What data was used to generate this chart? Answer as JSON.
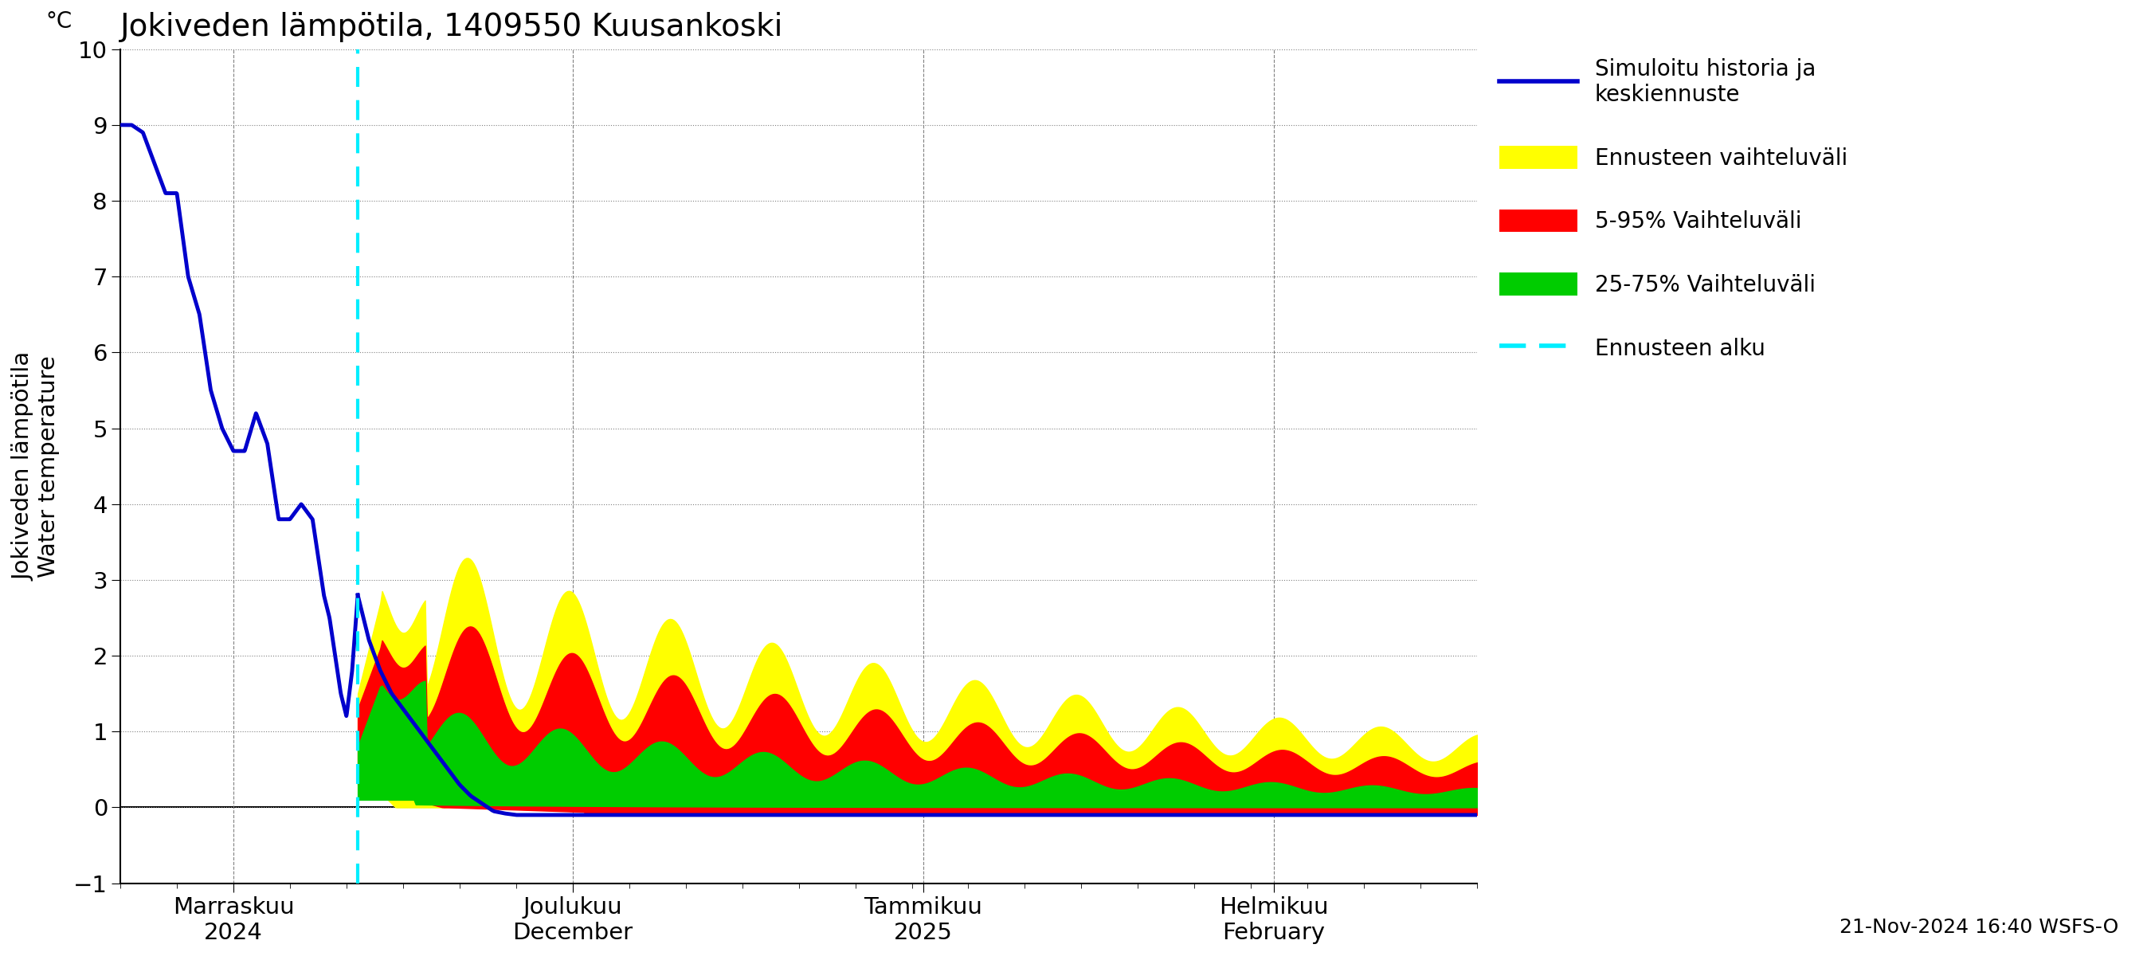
{
  "title": "Jokiveden lämpötila, 1409550 Kuusankoski",
  "ylabel_fi": "Jokiveden lämpötila",
  "ylabel_en": "Water temperature",
  "yunit": "°C",
  "ylim": [
    -1,
    10
  ],
  "yticks": [
    -1,
    0,
    1,
    2,
    3,
    4,
    5,
    6,
    7,
    8,
    9,
    10
  ],
  "footnote": "21-Nov-2024 16:40 WSFS-O",
  "colors": {
    "blue_line": "#0000cc",
    "cyan_dashed": "#00eeff",
    "yellow_band": "#ffff00",
    "red_band": "#ff0000",
    "green_band": "#00cc00"
  },
  "legend": {
    "simuloitu": "Simuloitu historia ja\nkeskiennuste",
    "ennuste_vaihteluvali": "Ennusteen vaihteluväli",
    "band_595": "5-95% Vaihteluväli",
    "band_2575": "25-75% Vaihteluväli",
    "ennuste_alku": "Ennusteen alku"
  },
  "xtick_labels": [
    [
      "Marraskuu\n2024",
      10
    ],
    [
      "Joulukuu\nDecember",
      40
    ],
    [
      "Tammikuu\n2025",
      71
    ],
    [
      "Helmikuu\nFebruary",
      102
    ]
  ],
  "history_days": 21,
  "total_days": 120
}
